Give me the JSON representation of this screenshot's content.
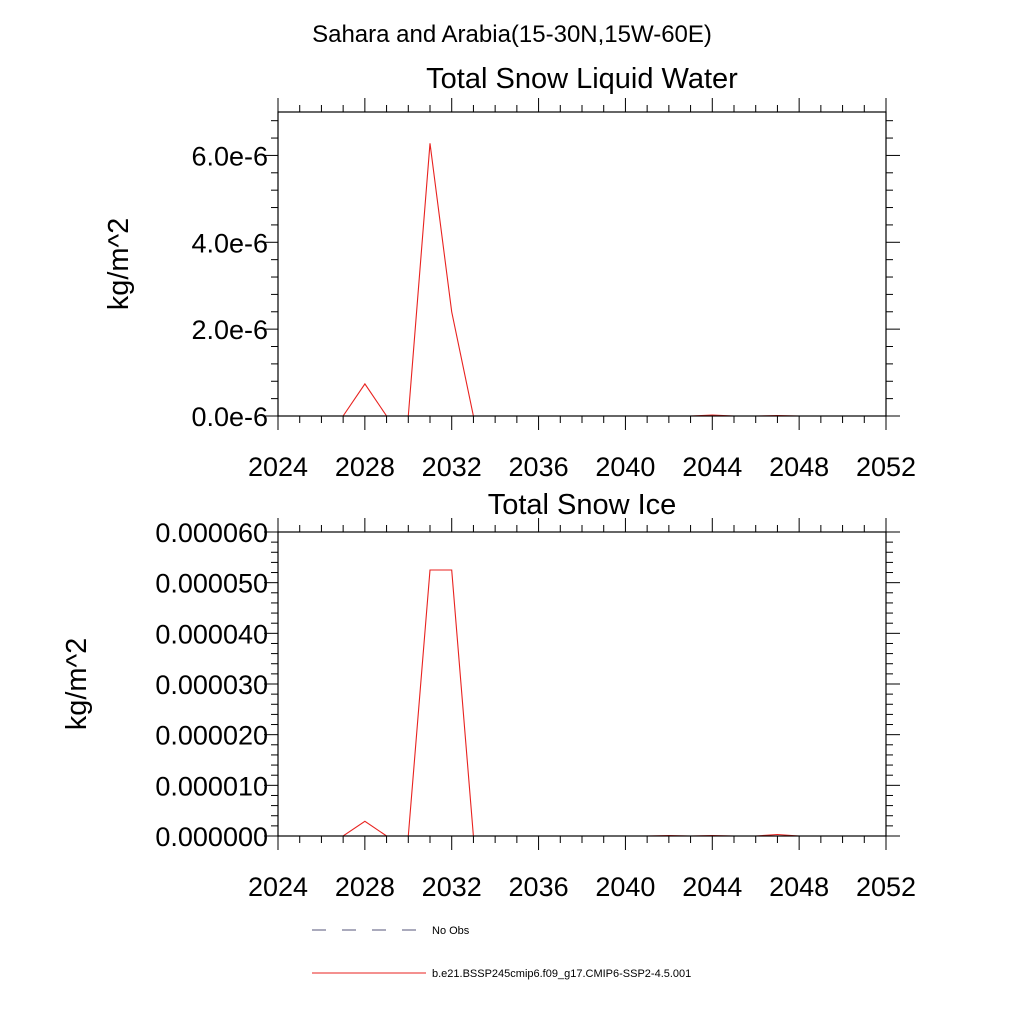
{
  "suptitle": "Sahara and Arabia(15-30N,15W-60E)",
  "legend": [
    {
      "label": "No Obs",
      "color": "#55557a",
      "dash": "dashed"
    },
    {
      "label": "b.e21.BSSP245cmip6.f09_g17.CMIP6-SSP2-4.5.001",
      "color": "#e8221f",
      "dash": "solid"
    }
  ],
  "chart_data": [
    {
      "type": "line",
      "title": "Total Snow Liquid Water",
      "ylabel": "kg/m^2",
      "xlabel": "",
      "xlim": [
        2024,
        2052
      ],
      "ylim": [
        0,
        7e-06
      ],
      "xticks": [
        2024,
        2028,
        2032,
        2036,
        2040,
        2044,
        2048,
        2052
      ],
      "xtick_labels": [
        "2024",
        "2028",
        "2032",
        "2036",
        "2040",
        "2044",
        "2048",
        "2052"
      ],
      "yticks": [
        0,
        2e-06,
        4e-06,
        6e-06
      ],
      "ytick_labels": [
        "0.0e-6",
        "2.0e-6",
        "4.0e-6",
        "6.0e-6"
      ],
      "grid": false,
      "series": [
        {
          "name": "b.e21.BSSP245cmip6.f09_g17.CMIP6-SSP2-4.5.001",
          "color": "#e8221f",
          "x": [
            2025,
            2026,
            2027,
            2028,
            2029,
            2030,
            2031,
            2032,
            2033,
            2034,
            2035,
            2036,
            2037,
            2038,
            2039,
            2040,
            2041,
            2042,
            2043,
            2044,
            2045,
            2046,
            2047,
            2048,
            2049
          ],
          "y": [
            0,
            0,
            0,
            7.4e-07,
            0,
            0,
            6.28e-06,
            2.4e-06,
            0,
            0,
            0,
            0,
            0,
            0,
            0,
            0,
            0,
            0,
            0,
            2e-08,
            0,
            0,
            1e-08,
            0,
            0
          ]
        }
      ]
    },
    {
      "type": "line",
      "title": "Total Snow Ice",
      "ylabel": "kg/m^2",
      "xlabel": "",
      "xlim": [
        2024,
        2052
      ],
      "ylim": [
        0,
        6e-05
      ],
      "xticks": [
        2024,
        2028,
        2032,
        2036,
        2040,
        2044,
        2048,
        2052
      ],
      "xtick_labels": [
        "2024",
        "2028",
        "2032",
        "2036",
        "2040",
        "2044",
        "2048",
        "2052"
      ],
      "yticks": [
        0,
        1e-05,
        2e-05,
        3e-05,
        4e-05,
        5e-05,
        6e-05
      ],
      "ytick_labels": [
        "0.000000",
        "0.000010",
        "0.000020",
        "0.000030",
        "0.000040",
        "0.000050",
        "0.000060"
      ],
      "grid": false,
      "series": [
        {
          "name": "b.e21.BSSP245cmip6.f09_g17.CMIP6-SSP2-4.5.001",
          "color": "#e8221f",
          "x": [
            2025,
            2026,
            2027,
            2028,
            2029,
            2030,
            2031,
            2032,
            2033,
            2034,
            2035,
            2036,
            2037,
            2038,
            2039,
            2040,
            2041,
            2042,
            2043,
            2044,
            2045,
            2046,
            2047,
            2048,
            2049
          ],
          "y": [
            0,
            0,
            0,
            2.9e-06,
            0,
            0,
            5.25e-05,
            5.25e-05,
            0,
            0,
            0,
            0,
            0,
            0,
            0,
            0,
            0,
            1e-07,
            0,
            1e-07,
            0,
            0,
            3e-07,
            0,
            0
          ]
        }
      ]
    }
  ]
}
